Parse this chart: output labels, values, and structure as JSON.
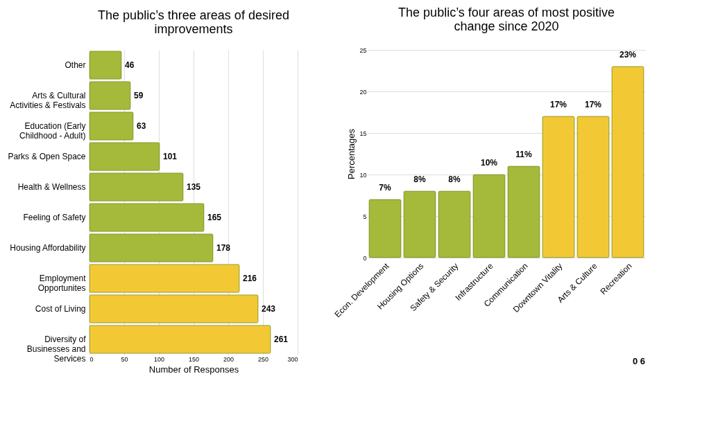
{
  "chart_data": [
    {
      "type": "bar",
      "orientation": "horizontal",
      "title": "The public’s three areas of desired improvements",
      "xlabel": "Number of Responses",
      "categories": [
        "Other",
        "Arts & Cultural Activities & Festivals",
        "Education (Early Childhood - Adult)",
        "Parks & Open Space",
        "Health & Wellness",
        "Feeling of Safety",
        "Housing Affordability",
        "Employment Opportunites",
        "Cost of Living",
        "Diversity of Businesses and Services"
      ],
      "values": [
        46,
        59,
        63,
        101,
        135,
        165,
        178,
        216,
        243,
        261
      ],
      "colors": [
        "#a5b93b",
        "#a5b93b",
        "#a5b93b",
        "#a5b93b",
        "#a5b93b",
        "#a5b93b",
        "#a5b93b",
        "#f2c935",
        "#f2c935",
        "#f2c935"
      ],
      "xlim": [
        0,
        300
      ],
      "xticks": [
        0,
        50,
        100,
        150,
        200,
        250,
        300
      ],
      "grid": "x",
      "legend": false,
      "data_labels": true
    },
    {
      "type": "bar",
      "title": "The public’s four areas of most positive change since 2020",
      "ylabel": "Percentages",
      "categories": [
        "Econ. Development",
        "Housing Options",
        "Safety & Security",
        "Infrastructure",
        "Communication",
        "Downtown Vitality",
        "Arts & Culture",
        "Recreation"
      ],
      "values": [
        7,
        8,
        8,
        10,
        11,
        17,
        17,
        23
      ],
      "colors": [
        "#a5b93b",
        "#a5b93b",
        "#a5b93b",
        "#a5b93b",
        "#a5b93b",
        "#f2c935",
        "#f2c935",
        "#f2c935"
      ],
      "value_labels": [
        "7%",
        "8%",
        "8%",
        "10%",
        "11%",
        "17%",
        "17%",
        "23%"
      ],
      "ylim": [
        0,
        25
      ],
      "yticks": [
        0,
        5,
        10,
        15,
        20,
        25
      ],
      "grid": "y",
      "legend": false,
      "annotations": [
        "0 6"
      ]
    }
  ]
}
